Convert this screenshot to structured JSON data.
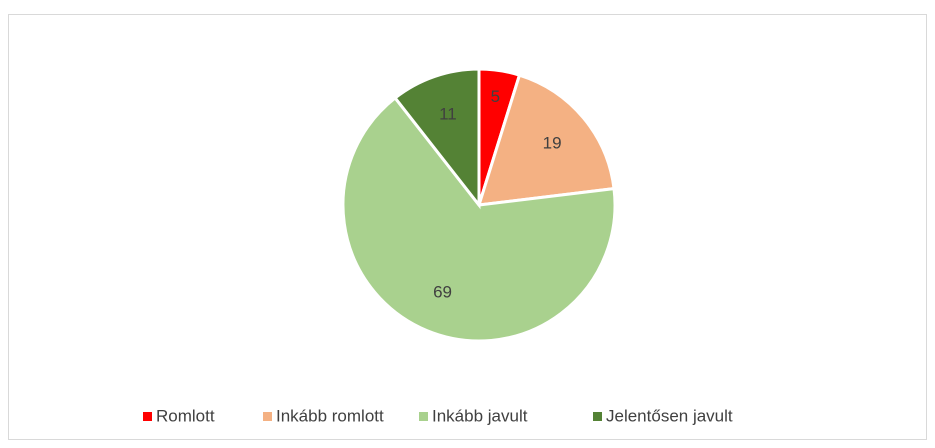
{
  "chart_data": {
    "type": "pie",
    "categories": [
      "Romlott",
      "Inkább romlott",
      "Inkább javult",
      "Jelentősen javult"
    ],
    "values": [
      5,
      19,
      69,
      11
    ],
    "colors": [
      "#ff0000",
      "#f4b183",
      "#a9d18e",
      "#548235"
    ],
    "legend": "bottom"
  }
}
